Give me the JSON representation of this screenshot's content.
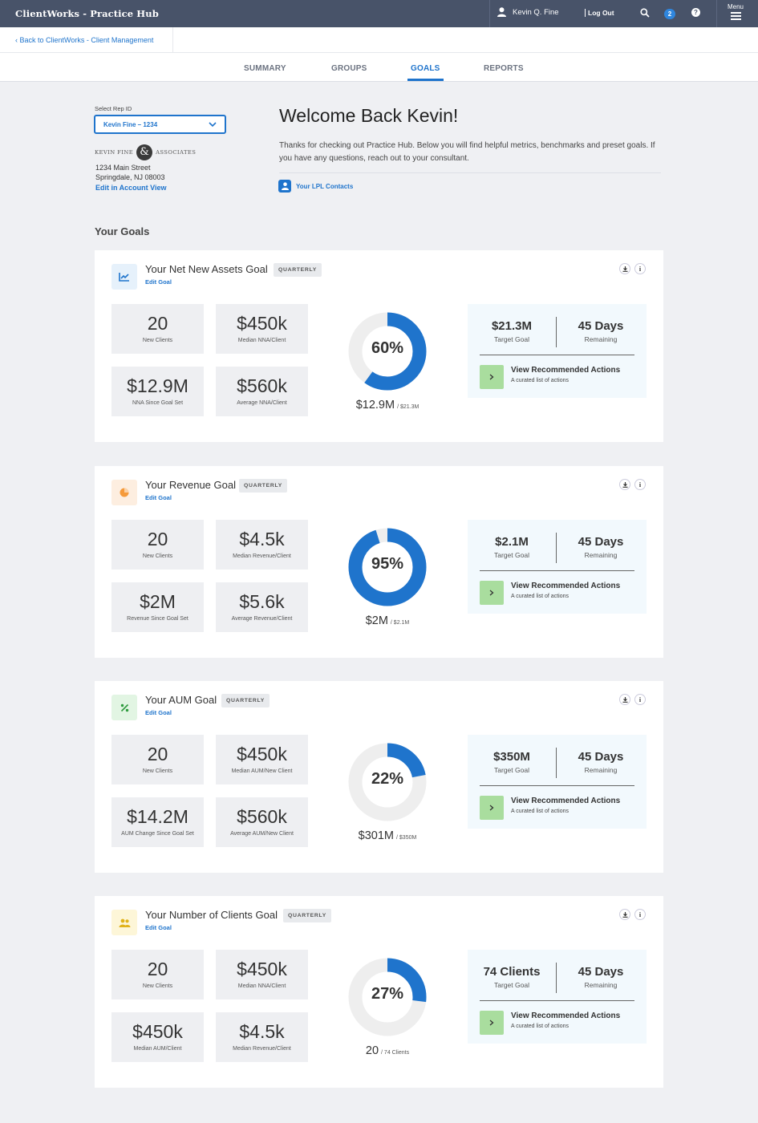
{
  "app": {
    "title": "ClientWorks - Practice Hub"
  },
  "topbar": {
    "user_name": "Kevin Q. Fine",
    "logout": "Log Out",
    "notifications": "2",
    "help": "?",
    "menu": "Menu"
  },
  "breadcrumb": {
    "back": "Back to ClientWorks - Client Management"
  },
  "tabs": [
    {
      "label": "SUMMARY"
    },
    {
      "label": "GROUPS"
    },
    {
      "label": "GOALS",
      "active": true
    },
    {
      "label": "REPORTS"
    }
  ],
  "sidebar": {
    "rep_label": "Select Rep ID",
    "rep_value": "Kevin Fine – 1234",
    "firm_left": "KEVIN FINE",
    "firm_amp": "&",
    "firm_right": "ASSOCIATES",
    "address_line1": "1234 Main Street",
    "address_line2": "Springdale, NJ 08003",
    "edit_link": "Edit in Account View"
  },
  "welcome": {
    "title": "Welcome Back Kevin!",
    "body": "Thanks for checking out Practice Hub. Below you will find helpful metrics, benchmarks and preset goals. If you have any questions, reach out to your consultant.",
    "contacts": "Your LPL Contacts"
  },
  "goals_heading": "Your Goals",
  "colors": {
    "accent": "#1f74cc",
    "topbar": "#485369",
    "track": "#eeeeee",
    "action_button": "#a9dd9e"
  },
  "goals": [
    {
      "title": "Your Net New Assets Goal",
      "badge": "QUARTERLY",
      "edit": "Edit Goal",
      "icon": "trend-chart-icon",
      "icon_bg": "#e6f1fb",
      "icon_color": "#1f74cc",
      "metrics": [
        {
          "value": "20",
          "label": "New Clients"
        },
        {
          "value": "$450k",
          "label": "Median NNA/Client"
        },
        {
          "value": "$12.9M",
          "label": "NNA Since Goal Set"
        },
        {
          "value": "$560k",
          "label": "Average NNA/Client"
        }
      ],
      "progress": 0.6,
      "percent": "60%",
      "current": "$12.9M",
      "target_small": "/ $21.3M",
      "target_value": "$21.3M",
      "target_label": "Target Goal",
      "days_value": "45 Days",
      "days_label": "Remaining",
      "action_title": "View Recommended Actions",
      "action_sub": "A curated list of actions"
    },
    {
      "title": "Your Revenue Goal",
      "badge": "QUARTERLY",
      "edit": "Edit Goal",
      "icon": "pie-chart-icon",
      "icon_bg": "#fdeee0",
      "icon_color": "#f59a3a",
      "metrics": [
        {
          "value": "20",
          "label": "New Clients"
        },
        {
          "value": "$4.5k",
          "label": "Median Revenue/Client"
        },
        {
          "value": "$2M",
          "label": "Revenue Since Goal Set"
        },
        {
          "value": "$5.6k",
          "label": "Average Revenue/Client"
        }
      ],
      "progress": 0.95,
      "percent": "95%",
      "current": "$2M",
      "target_small": "/ $2.1M",
      "target_value": "$2.1M",
      "target_label": "Target Goal",
      "days_value": "45 Days",
      "days_label": "Remaining",
      "action_title": "View Recommended Actions",
      "action_sub": "A curated list of actions"
    },
    {
      "title": "Your AUM Goal",
      "badge": "QUARTERLY",
      "edit": "Edit Goal",
      "icon": "percent-icon",
      "icon_bg": "#e2f5e3",
      "icon_color": "#2e9b3e",
      "metrics": [
        {
          "value": "20",
          "label": "New Clients"
        },
        {
          "value": "$450k",
          "label": "Median AUM/New Client"
        },
        {
          "value": "$14.2M",
          "label": "AUM Change Since Goal Set"
        },
        {
          "value": "$560k",
          "label": "Average AUM/New Client"
        }
      ],
      "progress": 0.22,
      "percent": "22%",
      "current": "$301M",
      "target_small": "/ $350M",
      "target_value": "$350M",
      "target_label": "Target Goal",
      "days_value": "45 Days",
      "days_label": "Remaining",
      "action_title": "View Recommended Actions",
      "action_sub": "A curated list of actions"
    },
    {
      "title": "Your Number of Clients Goal",
      "badge": "QUARTERLY",
      "edit": "Edit Goal",
      "icon": "users-icon",
      "icon_bg": "#fdf6d8",
      "icon_color": "#e0b21a",
      "metrics": [
        {
          "value": "20",
          "label": "New Clients"
        },
        {
          "value": "$450k",
          "label": "Median NNA/Client"
        },
        {
          "value": "$450k",
          "label": "Median AUM/Client"
        },
        {
          "value": "$4.5k",
          "label": "Median Revenue/Client"
        }
      ],
      "progress": 0.27,
      "percent": "27%",
      "current": "20",
      "target_small": "/ 74 Clients",
      "target_value": "74 Clients",
      "target_label": "Target Goal",
      "days_value": "45 Days",
      "days_label": "Remaining",
      "action_title": "View Recommended Actions",
      "action_sub": "A curated list of actions"
    }
  ]
}
